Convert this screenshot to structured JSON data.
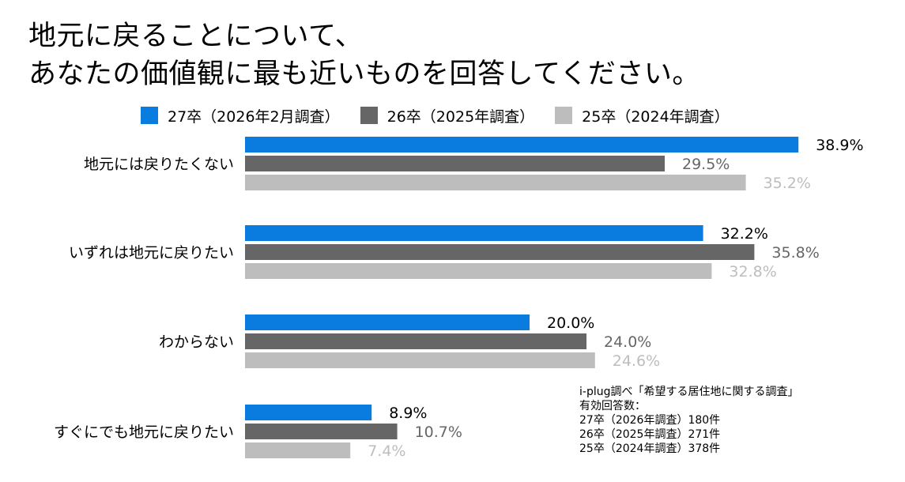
{
  "title_lines": [
    "地元に戻ることについて、",
    "あなたの価値観に最も近いものを回答してください。"
  ],
  "colors": {
    "series_1": "#0A7BDF",
    "series_2": "#666666",
    "series_3": "#BDBDBD"
  },
  "chart_data": {
    "type": "bar",
    "orientation": "horizontal",
    "title": "地元に戻ることについて、あなたの価値観に最も近いものを回答してください。",
    "categories": [
      "地元には戻りたくない",
      "いずれは地元に戻りたい",
      "わからない",
      "すぐにでも地元に戻りたい"
    ],
    "series": [
      {
        "name": "27卒（2026年2月調査）",
        "values": [
          38.9,
          32.2,
          20.0,
          8.9
        ],
        "labels": [
          "38.9%",
          "32.2%",
          "20.0%",
          "8.9%"
        ]
      },
      {
        "name": "26卒（2025年調査）",
        "values": [
          29.5,
          35.8,
          24.0,
          10.7
        ],
        "labels": [
          "29.5%",
          "35.8%",
          "24.0%",
          "10.7%"
        ]
      },
      {
        "name": "25卒（2024年調査）",
        "values": [
          35.2,
          32.8,
          24.6,
          7.4
        ],
        "labels": [
          "35.2%",
          "32.8%",
          "24.6%",
          "7.4%"
        ]
      }
    ],
    "unit": "%",
    "legend_position": "top",
    "grid": false
  },
  "note": {
    "lines": [
      "i-plug調べ「希望する居住地に関する調査」",
      "有効回答数：",
      "27卒（2026年調査）180件",
      "26卒（2025年調査）271件",
      "25卒（2024年調査）378件"
    ]
  }
}
